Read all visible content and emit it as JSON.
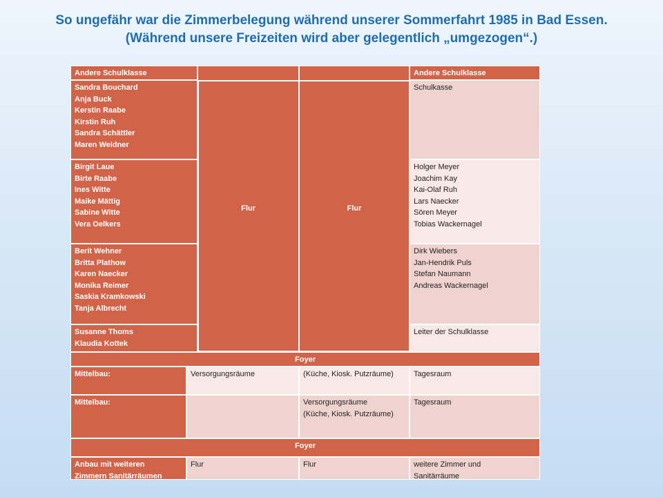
{
  "header": {
    "title": [
      "So ungefähr war die Zimmerbelegung während unserer Sommerfahrt 1985 in Bad Essen.",
      "(Während unsere Freizeiten wird aber gelegentlich „umgezogen“.)"
    ]
  },
  "wing": {
    "left_header": "Andere Schulklasse",
    "right_header": "Andere Schulklasse",
    "corridors": [
      "Flur",
      "Flur"
    ],
    "left_rooms": [
      [
        "Sandra Bouchard",
        "Anja Buck",
        "Kerstin Raabe",
        "Kirstin Ruh",
        "Sandra Schättler",
        "Maren Weidner"
      ],
      [
        "Birgit Laue",
        "Birte Raabe",
        "Ines Witte",
        "Maike Mättig",
        "Sabine Witte",
        "Vera Oelkers"
      ],
      [
        "Berit Wehner",
        "Britta Plathow",
        "Karen Naecker",
        "Monika Reimer",
        "Saskia Kramkowski",
        "Tanja Albrecht"
      ],
      [
        "Susanne Thoms",
        "Klaudia Kottek"
      ]
    ],
    "right_rooms": [
      [
        "Schulkasse"
      ],
      [
        "Holger Meyer",
        "Joachim Kay",
        "Kai-Olaf Ruh",
        "Lars Naecker",
        "Sören Meyer",
        "Tobias Wackernagel"
      ],
      [
        "Dirk Wiebers",
        "Jan-Hendrik Puls",
        "Stefan Naumann",
        "Andreas Wackernagel"
      ],
      [
        "Leiter der Schulklasse"
      ]
    ]
  },
  "foyers": [
    "Foyer",
    "Foyer"
  ],
  "middle": {
    "rows": [
      {
        "label": [
          "Mittelbau:"
        ],
        "supply": [
          "Versorgungsräume"
        ],
        "kitchen": [
          "(Küche, Kiosk. Putzräume)"
        ],
        "day_room": [
          "Tagesraum"
        ]
      },
      {
        "label": [
          "Mittelbau:"
        ],
        "supply": [
          "Versorgungsräume",
          "(Küche, Kiosk. Putzräume)"
        ],
        "day_room": [
          "Tagesraum"
        ]
      }
    ]
  },
  "annex": {
    "label": [
      "Anbau mit weiteren",
      "Zimmern Sanitärräumen"
    ],
    "corridors": [
      "Flur",
      "Flur"
    ],
    "rooms": [
      "weitere Zimmer und",
      "Sanitärräume"
    ]
  }
}
